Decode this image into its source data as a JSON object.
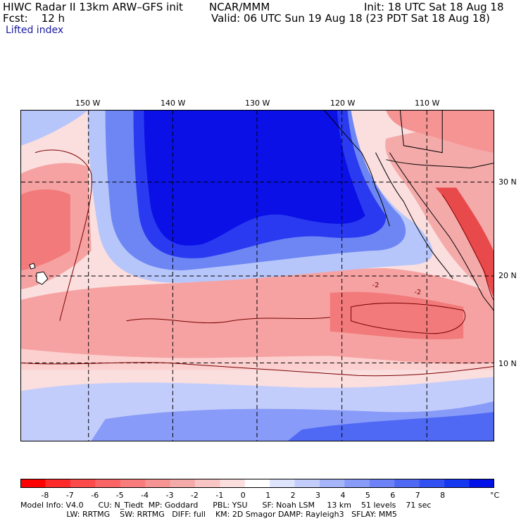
{
  "header": {
    "model": "HIWC Radar II 13km ARW–GFS init",
    "org": "NCAR/MMM",
    "init": "Init: 18 UTC Sat 18 Aug 18",
    "fcst": "Fcst:    12 h",
    "valid": "Valid: 06 UTC Sun 19 Aug 18 (23 PDT Sat 18 Aug 18)",
    "field": "Lifted index"
  },
  "map": {
    "lon_labels": [
      "150 W",
      "140 W",
      "130 W",
      "120 W",
      "110 W"
    ],
    "lat_labels": [
      "30 N",
      "20 N",
      "10 N"
    ],
    "colors": {
      "deep_blue": "#0a10e6",
      "blue": "#2a3af0",
      "mid_blue": "#6e86f4",
      "light_blue": "#b7c6fa",
      "pale": "#e4e9fc",
      "pale_red": "#fbd0cf",
      "light_red": "#f6a2a2",
      "red": "#f27a7a",
      "dark_red": "#e8494b"
    },
    "contour_labels": [
      "-2",
      "-2"
    ]
  },
  "colorbar": {
    "labels": [
      "-8",
      "-7",
      "-6",
      "-5",
      "-4",
      "-3",
      "-2",
      "-1",
      "0",
      "1",
      "2",
      "3",
      "4",
      "5",
      "6",
      "7",
      "8"
    ],
    "unit": "°C",
    "colors": [
      "#fe0000",
      "#fe2a2a",
      "#fd4a4a",
      "#fb6464",
      "#f87c7c",
      "#f69393",
      "#f5aaaa",
      "#f8c4c4",
      "#fbdede",
      "#ffffff",
      "#dfe4fd",
      "#c3cdfb",
      "#a6b4fa",
      "#899bf8",
      "#6c82f6",
      "#4f69f4",
      "#3250f2",
      "#1537f0",
      "#0010e8"
    ]
  },
  "footer": {
    "line1": "Model Info: V4.0      CU: N_Tiedt  MP: Goddard      PBL: YSU      SF: Noah LSM     13 km    51 levels    71 sec",
    "line2": "                           LW: RRTMG    SW: RRTMG   DIFF: full    KM: 2D Smagor DAMP: Rayleigh3   SFLAY: MM5"
  }
}
